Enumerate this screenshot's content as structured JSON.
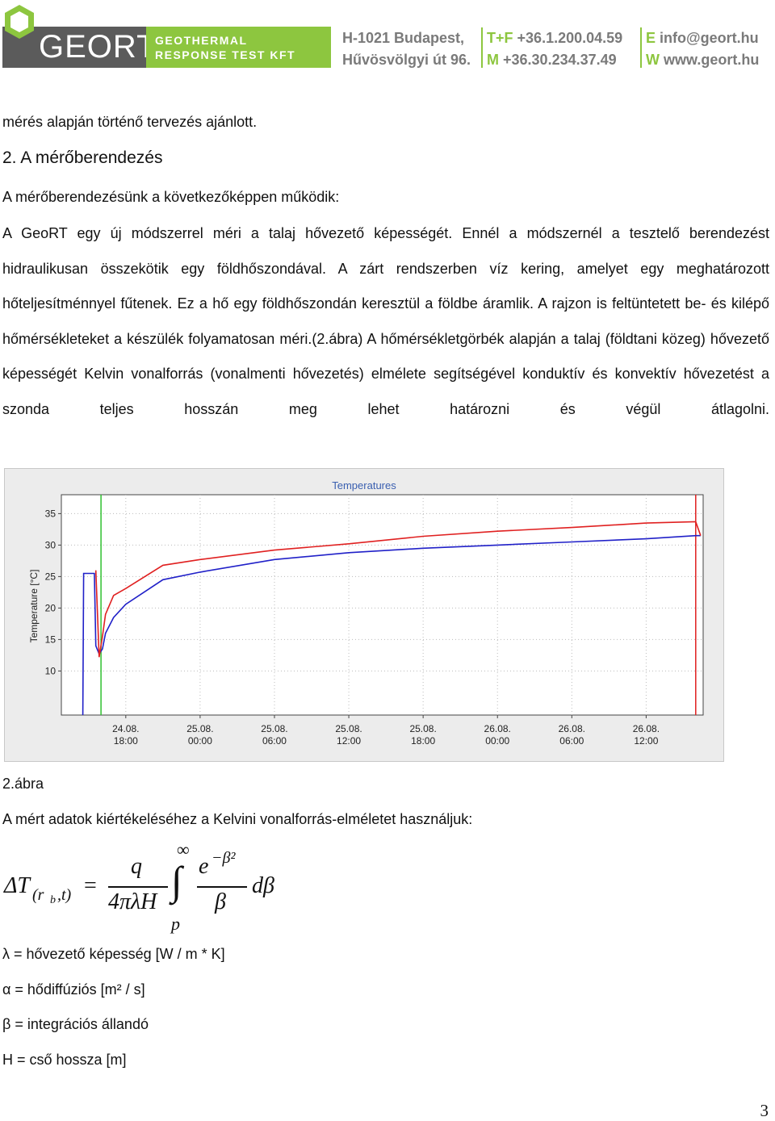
{
  "header": {
    "logo": "GEORT",
    "company_lines": [
      "GEOTHERMAL",
      "RESPONSE TEST KFT"
    ],
    "address_lines": [
      "H-1021 Budapest,",
      "Hűvösvölgyi út 96."
    ],
    "contacts": [
      {
        "key": "T+F",
        "value": "+36.1.200.04.59"
      },
      {
        "key": "M",
        "value": "+36.30.234.37.49"
      },
      {
        "key": "E",
        "value": "info@geort.hu"
      },
      {
        "key": "W",
        "value": "www.geort.hu"
      }
    ]
  },
  "body": {
    "intro": "mérés alapján történő tervezés ajánlott.",
    "heading": "2. A mérőberendezés",
    "lead": "A mérőberendezésünk a következőképpen működik:",
    "paragraph": "A GeoRT egy új módszerrel méri a talaj hővezető képességét. Ennél a módszernél a tesztelő berendezést hidraulikusan összekötik egy földhőszondával. A zárt rendszerben víz kering, amelyet egy meghatározott hőteljesítménnyel fűtenek. Ez a hő egy földhőszondán keresztül a földbe áramlik. A rajzon is feltüntetett be- és kilépő hőmérsékleteket a készülék folyamatosan méri.(2.ábra) A hőmérsékletgörbék alapján a talaj (földtani közeg) hővezető képességét Kelvin vonalforrás (vonalmenti hővezetés) elmélete segítségével konduktív és konvektív hővezetést a szonda teljes hosszán meg lehet határozni és végül átlagolni.",
    "caption": "2.ábra",
    "formula_intro": "A mért adatok kiértékeléséhez a Kelvini vonalforrás-elméletet használjuk:",
    "definitions": [
      "λ = hővezető képesség [W / m * K]",
      "α = hődiffúziós [m² / s]",
      "β = integrációs állandó",
      "H = cső hossza [m]"
    ],
    "page_number": "3"
  },
  "formula": {
    "lhs": "ΔT",
    "sub_open": "(r",
    "sub_index": "b",
    "sub_close": ",t)",
    "equals": "=",
    "numerator": "q",
    "denominator": "4πλH",
    "integral": "∫",
    "upper": "∞",
    "lower": "p",
    "exp_base": "e",
    "exp_power": "−β²",
    "frac_den": "β",
    "differential": "dβ"
  },
  "chart_data": {
    "type": "line",
    "title": "Temperatures",
    "y_label": "Temperature [°C]",
    "x": [
      "24.08. 14:32",
      "24.08. 14:36",
      "24.08. 15:28",
      "24.08. 15:35",
      "24.08. 15:51",
      "24.08. 16:07",
      "24.08. 16:22",
      "24.08. 17:01",
      "24.08. 18:00",
      "24.08. 21:00",
      "25.08. 00:00",
      "25.08. 06:00",
      "25.08. 12:00",
      "25.08. 18:00",
      "26.08. 00:00",
      "26.08. 06:00",
      "26.08. 12:00",
      "26.08. 16:00",
      "26.08. 16:24"
    ],
    "series": [
      {
        "color": "#2020c8",
        "values": [
          3,
          25.5,
          25.5,
          14,
          12.7,
          13.5,
          16,
          18.5,
          20.6,
          24.5,
          25.7,
          27.7,
          28.8,
          29.5,
          30,
          30.5,
          31,
          31.5,
          31.5
        ]
      },
      {
        "color": "#e02020",
        "values": [
          null,
          null,
          null,
          26,
          12.2,
          15.5,
          19,
          22,
          23.1,
          26.8,
          27.7,
          29.2,
          30.2,
          31.4,
          32.2,
          32.8,
          33.5,
          33.7,
          31.5
        ]
      }
    ],
    "markers": [
      {
        "x": "24.08. 16:00",
        "color": "#30c030"
      },
      {
        "x": "26.08. 16:00",
        "color": "#e02020"
      }
    ],
    "xlim": [
      "24.08. 12:48",
      "26.08. 16:36"
    ],
    "xticks": [
      "24.08. 18:00",
      "25.08. 00:00",
      "25.08. 06:00",
      "25.08. 12:00",
      "25.08. 18:00",
      "26.08. 00:00",
      "26.08. 06:00",
      "26.08. 12:00"
    ],
    "ylim": [
      3,
      38
    ],
    "yticks": [
      10,
      15,
      20,
      25,
      30,
      35
    ],
    "grid": true
  }
}
